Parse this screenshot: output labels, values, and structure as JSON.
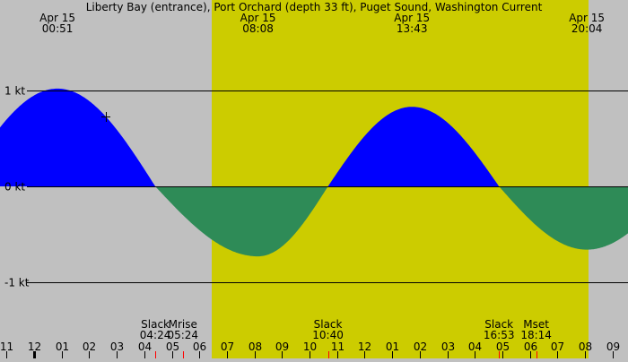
{
  "chart_data": {
    "type": "area",
    "title": "Liberty Bay (entrance), Port Orchard (depth 33 ft), Puget Sound, Washington Current",
    "unit": "kt",
    "y_ticks": [
      {
        "value": 1,
        "label": "1 kt"
      },
      {
        "value": 0,
        "label": "0 kt"
      },
      {
        "value": -1,
        "label": "-1 kt"
      }
    ],
    "ylim": [
      -1.4,
      1.4
    ],
    "x_hours_range": [
      -1.24,
      21.56
    ],
    "x_tick_labels": [
      "11",
      "12",
      "01",
      "02",
      "03",
      "04",
      "05",
      "06",
      "07",
      "08",
      "09",
      "10",
      "11",
      "12",
      "01",
      "02",
      "03",
      "04",
      "05",
      "06",
      "07",
      "08",
      "09"
    ],
    "daylight": {
      "start_hour": 6.45,
      "end_hour": 20.13
    },
    "extrema": [
      {
        "date": "Apr 15",
        "time": "00:51",
        "hour": 0.85,
        "value": 1.02
      },
      {
        "date": "Apr 15",
        "time": "08:08",
        "hour": 8.13,
        "value": -0.73
      },
      {
        "date": "Apr 15",
        "time": "13:43",
        "hour": 13.72,
        "value": 0.83
      },
      {
        "date": "Apr 15",
        "time": "20:04",
        "hour": 20.07,
        "value": -0.66
      }
    ],
    "slacks": [
      {
        "label": "Slack",
        "time": "04:24",
        "hour": 4.4
      },
      {
        "label": "Slack",
        "time": "10:40",
        "hour": 10.67
      },
      {
        "label": "Slack",
        "time": "16:53",
        "hour": 16.88
      }
    ],
    "moon_events": [
      {
        "label": "Mrise",
        "time": "05:24",
        "hour": 5.4
      },
      {
        "label": "Mset",
        "time": "18:14",
        "hour": 18.23
      }
    ],
    "colors": {
      "flood": "#0000ff",
      "ebb": "#2e8b57",
      "day": "#cccc00",
      "night": "#c0c0c0",
      "event_tick": "#ff0000"
    }
  }
}
